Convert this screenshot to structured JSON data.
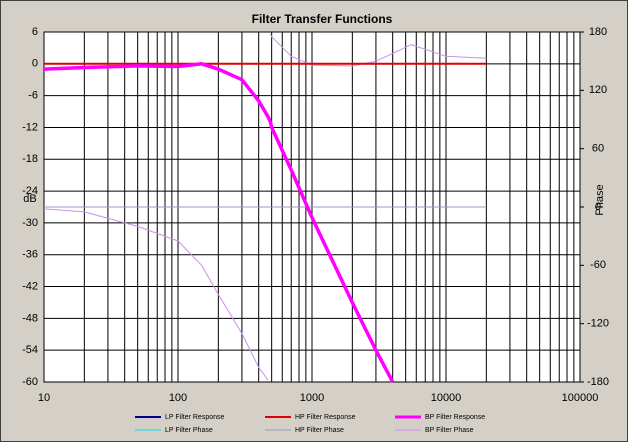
{
  "chart_data": {
    "type": "line",
    "title": "Filter Transfer Functions",
    "y_label": "dB",
    "y2_label": "Phase",
    "log_x": true,
    "grid": true,
    "xlim": [
      10,
      100000
    ],
    "xticks": [
      10,
      100,
      1000,
      10000,
      100000
    ],
    "xminorticks": [
      20,
      30,
      40,
      50,
      60,
      70,
      80,
      90,
      200,
      300,
      400,
      500,
      600,
      700,
      800,
      900,
      2000,
      3000,
      4000,
      5000,
      6000,
      7000,
      8000,
      9000,
      20000,
      30000,
      40000,
      50000,
      60000,
      70000,
      80000,
      90000
    ],
    "ylim": [
      -60,
      6
    ],
    "yticks": [
      6,
      0,
      -6,
      -12,
      -18,
      -24,
      -30,
      -36,
      -42,
      -48,
      -54,
      -60
    ],
    "y2lim": [
      -180,
      180
    ],
    "y2ticks": [
      180,
      120,
      60,
      0,
      -60,
      -120,
      -180
    ],
    "x": [
      10,
      20,
      50,
      100,
      150,
      200,
      300,
      400,
      470,
      480,
      490,
      500,
      700,
      1000,
      2000,
      3000,
      4000,
      5500,
      10000,
      20000
    ],
    "series": [
      {
        "name": "LP Filter Response",
        "color": "#00008b",
        "width": 2,
        "values": [
          null,
          null,
          null,
          null,
          null,
          null,
          null,
          null,
          null,
          null,
          null,
          null,
          null,
          null,
          null,
          null,
          null,
          null,
          null,
          null
        ]
      },
      {
        "name": "HP Filter Response",
        "color": "#e00000",
        "width": 2,
        "values": [
          0,
          0,
          0,
          0,
          0,
          0,
          0,
          0,
          0,
          0,
          0,
          0,
          0,
          0,
          0,
          0,
          0,
          0,
          0,
          0
        ]
      },
      {
        "name": "BP Filter Response",
        "color": "#ff00ff",
        "width": 3.5,
        "values": [
          -1,
          -0.7,
          -0.4,
          -0.5,
          0,
          -1,
          -3,
          -7,
          -10,
          -10.5,
          -11,
          -12,
          -20,
          -29,
          -45,
          -54,
          -60,
          null,
          null,
          null
        ]
      },
      {
        "name": "LP Filter Phase",
        "color": "#00e0e0",
        "width": 1,
        "axis": "y2",
        "values": [
          null,
          null,
          null,
          null,
          null,
          null,
          null,
          null,
          null,
          null,
          null,
          null,
          null,
          null,
          null,
          null,
          null,
          null,
          null,
          null
        ]
      },
      {
        "name": "HP Filter Phase",
        "color": "#9a98c4",
        "width": 1,
        "axis": "y2",
        "values": [
          0,
          0,
          0,
          0,
          0,
          0,
          0,
          0,
          0,
          0,
          0,
          0,
          0,
          0,
          0,
          0,
          0,
          0,
          0,
          0
        ]
      },
      {
        "name": "BP Filter Phase",
        "color": "#c890ee",
        "width": 1,
        "axis": "y2",
        "values": [
          -2,
          -5,
          -20,
          -35,
          -60,
          -90,
          -130,
          -165,
          -178,
          null,
          178,
          175,
          155,
          146,
          145,
          150,
          158,
          167,
          155,
          153
        ]
      }
    ]
  }
}
